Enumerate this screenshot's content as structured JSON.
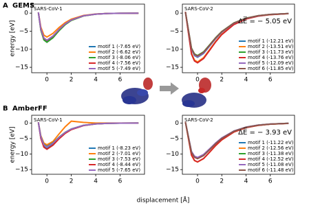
{
  "figure": {
    "xlabel": "displacement [Å]",
    "sections": [
      {
        "letter": "A",
        "name": "GEMS"
      },
      {
        "letter": "B",
        "name": "AmberFF"
      }
    ]
  },
  "chart_data": [
    {
      "type": "line",
      "title": "SARS-CoV-1",
      "ylabel": "energy [eV]",
      "legend": "lower right",
      "grid": false,
      "x": [
        -0.7,
        -0.5,
        -0.25,
        0,
        0.5,
        1,
        1.5,
        2,
        3,
        4,
        5,
        6,
        7.5
      ],
      "xlim": [
        -1.25,
        8
      ],
      "ylim": [
        -16.5,
        2.5
      ],
      "xticks": [
        0,
        2,
        4,
        6
      ],
      "yticks": [
        {
          "value": -15,
          "label": "−15"
        },
        {
          "value": -10,
          "label": "−10"
        },
        {
          "value": -5,
          "label": "−5"
        },
        0
      ],
      "series": [
        {
          "name": "motif 1 (-7.65 eV)",
          "color": "#1f77b4",
          "values": [
            0.2,
            -4.43,
            -7.03,
            -7.65,
            -6.46,
            -4.59,
            -3.03,
            -1.93,
            -0.74,
            -0.28,
            -0.1,
            -0.04,
            -0.01
          ]
        },
        {
          "name": "motif 2 (-6.62 eV)",
          "color": "#ff7f0e",
          "values": [
            0.19,
            -3.83,
            -6.08,
            -6.62,
            -5.59,
            -3.97,
            -2.62,
            -1.67,
            -0.64,
            -0.24,
            -0.09,
            -0.03,
            -0.01
          ]
        },
        {
          "name": "motif 3 (-8.06 eV)",
          "color": "#2ca02c",
          "values": [
            0.23,
            -4.67,
            -7.41,
            -8.06,
            -6.81,
            -4.84,
            -3.19,
            -2.03,
            -0.78,
            -0.29,
            -0.1,
            -0.04,
            -0.01
          ]
        },
        {
          "name": "motif 4 (-7.56 eV)",
          "color": "#d62728",
          "values": [
            0.21,
            -4.38,
            -6.95,
            -7.56,
            -6.39,
            -4.54,
            -2.99,
            -1.91,
            -0.73,
            -0.27,
            -0.1,
            -0.04,
            -0.01
          ]
        },
        {
          "name": "motif 5 (-7.49 eV)",
          "color": "#9467bd",
          "values": [
            0.21,
            -4.34,
            -6.88,
            -7.49,
            -6.33,
            -4.49,
            -2.97,
            -1.89,
            -0.73,
            -0.27,
            -0.1,
            -0.04,
            -0.01
          ]
        }
      ]
    },
    {
      "type": "line",
      "title": "SARS-CoV-2",
      "annotation": "ΔE̅ = − 5.05 eV",
      "legend": "lower right",
      "grid": false,
      "x": [
        -1,
        -0.5,
        -0.25,
        0,
        0.5,
        1,
        1.5,
        2,
        3,
        4,
        5,
        6,
        7.5
      ],
      "xlim": [
        -1.25,
        8
      ],
      "ylim": [
        -16.5,
        2.5
      ],
      "xticks": [
        0,
        2,
        4,
        6
      ],
      "yticks": [
        {
          "value": -15,
          "label": "−15"
        },
        {
          "value": -10,
          "label": "−10"
        },
        {
          "value": -5,
          "label": "−5"
        },
        0
      ],
      "series": [
        {
          "name": "motif 1 (-12.21 eV)",
          "color": "#1f77b4",
          "values": [
            0.34,
            -10.06,
            -11.76,
            -12.21,
            -11.15,
            -9.12,
            -7.05,
            -5.27,
            -2.81,
            -1.44,
            -0.73,
            -0.37,
            -0.12
          ]
        },
        {
          "name": "motif 2 (-13.51 eV)",
          "color": "#ff7f0e",
          "values": [
            0.38,
            -11.13,
            -13.01,
            -13.51,
            -12.33,
            -10.09,
            -7.8,
            -5.84,
            -3.11,
            -1.59,
            -0.81,
            -0.41,
            -0.14
          ]
        },
        {
          "name": "motif 3 (-11.73 eV)",
          "color": "#2ca02c",
          "values": [
            0.33,
            -9.67,
            -11.3,
            -11.73,
            -10.71,
            -8.76,
            -6.77,
            -5.07,
            -2.7,
            -1.38,
            -0.7,
            -0.35,
            -0.12
          ]
        },
        {
          "name": "motif 4 (-13.76 eV)",
          "color": "#d62728",
          "values": [
            0.39,
            -11.34,
            -13.25,
            -13.76,
            -12.56,
            -10.28,
            -7.94,
            -5.94,
            -3.16,
            -1.62,
            -0.83,
            -0.41,
            -0.14
          ]
        },
        {
          "name": "motif 5 (-12.09 eV)",
          "color": "#9467bd",
          "values": [
            0.34,
            -9.96,
            -11.64,
            -12.09,
            -11.04,
            -9.03,
            -6.98,
            -5.22,
            -2.78,
            -1.43,
            -0.73,
            -0.36,
            -0.12
          ]
        },
        {
          "name": "motif 6 (-11.85 eV)",
          "color": "#8c564b",
          "values": [
            0.33,
            -9.76,
            -11.41,
            -11.85,
            -10.82,
            -8.85,
            -6.84,
            -5.12,
            -2.73,
            -1.4,
            -0.71,
            -0.36,
            -0.12
          ]
        }
      ]
    },
    {
      "type": "line",
      "title": "SARS-CoV-1",
      "ylabel": "energy [eV]",
      "legend": "lower right",
      "grid": false,
      "x": [
        -0.7,
        -0.5,
        -0.25,
        0,
        0.5,
        1,
        1.5,
        2,
        3,
        4,
        5,
        6,
        7.5
      ],
      "xlim": [
        -1.25,
        8
      ],
      "ylim": [
        -16.5,
        2.5
      ],
      "xticks": [
        0,
        2,
        4,
        6
      ],
      "yticks": [
        {
          "value": -15,
          "label": "−15"
        },
        {
          "value": -10,
          "label": "−10"
        },
        {
          "value": -5,
          "label": "−5"
        },
        0
      ],
      "series": [
        {
          "name": "motif 1 (-8.23 eV)",
          "color": "#1f77b4",
          "values": [
            0.23,
            -4.77,
            -7.56,
            -8.23,
            -6.95,
            -4.94,
            -3.26,
            -2.07,
            -0.8,
            -0.3,
            -0.11,
            -0.04,
            -0.01
          ]
        },
        {
          "name": "motif 2 (-7.01 eV)",
          "color": "#ff7f0e",
          "values": [
            0.2,
            -4.06,
            -6.44,
            -7.01,
            -5.92,
            -3.5,
            -1.2,
            0.6,
            0.2,
            0,
            0,
            0,
            0
          ]
        },
        {
          "name": "motif 3 (-7.53 eV)",
          "color": "#2ca02c",
          "values": [
            0.21,
            -4.36,
            -6.92,
            -7.53,
            -6.36,
            -4.52,
            -2.98,
            -1.9,
            -0.73,
            -0.27,
            -0.1,
            -0.04,
            -0.01
          ]
        },
        {
          "name": "motif 4 (-8.44 eV)",
          "color": "#d62728",
          "values": [
            0.24,
            -4.89,
            -7.76,
            -8.44,
            -7.13,
            -5.06,
            -3.34,
            -2.13,
            -0.82,
            -0.3,
            -0.11,
            -0.04,
            -0.01
          ]
        },
        {
          "name": "motif 5 (-7.65 eV)",
          "color": "#9467bd",
          "values": [
            0.21,
            -4.43,
            -7.03,
            -7.65,
            -6.46,
            -4.59,
            -3.03,
            -1.93,
            -0.74,
            -0.28,
            -0.1,
            -0.04,
            -0.01
          ]
        }
      ]
    },
    {
      "type": "line",
      "title": "SARS-CoV-2",
      "annotation": "ΔE̅ = − 3.93 eV",
      "legend": "lower right",
      "grid": false,
      "x": [
        -1,
        -0.5,
        -0.25,
        0,
        0.5,
        1,
        1.5,
        2,
        3,
        4,
        5,
        6,
        7.5
      ],
      "xlim": [
        -1.25,
        8
      ],
      "ylim": [
        -16.5,
        2.5
      ],
      "xticks": [
        0,
        2,
        4,
        6
      ],
      "yticks": [
        {
          "value": -15,
          "label": "−15"
        },
        {
          "value": -10,
          "label": "−10"
        },
        {
          "value": -5,
          "label": "−5"
        },
        0
      ],
      "series": [
        {
          "name": "motif 1 (-11.22 eV)",
          "color": "#1f77b4",
          "values": [
            0.31,
            -9.25,
            -10.8,
            -11.22,
            -10.24,
            -8.38,
            -6.47,
            -4.85,
            -2.58,
            -1.32,
            -0.67,
            -0.34,
            -0.11
          ]
        },
        {
          "name": "motif 2 (-12.56 eV)",
          "color": "#ff7f0e",
          "values": [
            0.35,
            -10.35,
            -12.1,
            -12.56,
            -11.47,
            -9.38,
            -7.25,
            -5.43,
            -2.89,
            -1.48,
            -0.75,
            -0.38,
            -0.13
          ]
        },
        {
          "name": "motif 3 (-11.38 eV)",
          "color": "#2ca02c",
          "values": [
            0.32,
            -9.38,
            -10.96,
            -11.38,
            -10.39,
            -8.5,
            -6.57,
            -4.92,
            -2.62,
            -1.34,
            -0.68,
            -0.34,
            -0.11
          ]
        },
        {
          "name": "motif 4 (-12.52 eV)",
          "color": "#d62728",
          "values": [
            0.35,
            -10.32,
            -12.06,
            -12.52,
            -11.43,
            -9.35,
            -7.22,
            -5.41,
            -2.88,
            -1.48,
            -0.75,
            -0.38,
            -0.13
          ]
        },
        {
          "name": "motif 5 (-11.08 eV)",
          "color": "#9467bd",
          "values": [
            0.31,
            -9.13,
            -10.67,
            -11.08,
            -10.12,
            -8.28,
            -6.39,
            -4.79,
            -2.55,
            -1.31,
            -0.66,
            -0.33,
            -0.11
          ]
        },
        {
          "name": "motif 6 (-11.48 eV)",
          "color": "#8c564b",
          "values": [
            0.32,
            -9.46,
            -11.06,
            -11.48,
            -10.48,
            -8.58,
            -6.62,
            -4.96,
            -2.64,
            -1.35,
            -0.69,
            -0.34,
            -0.11
          ]
        }
      ]
    }
  ]
}
